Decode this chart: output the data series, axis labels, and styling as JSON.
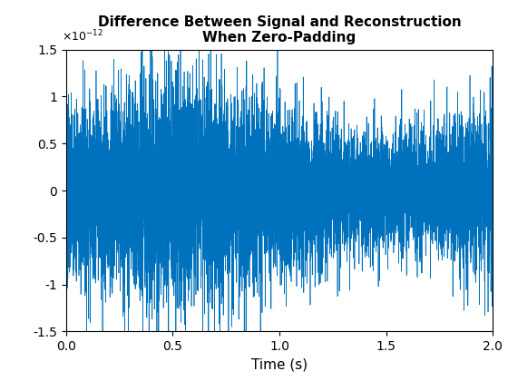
{
  "title": "Difference Between Signal and Reconstruction\nWhen Zero-Padding",
  "xlabel": "Time (s)",
  "ylabel_exp": -12,
  "ylim": [
    -1.5e-12,
    1.5e-12
  ],
  "xlim": [
    0,
    2
  ],
  "line_color": "#0072BD",
  "n_points": 8000,
  "duration": 2.0,
  "seed": 7,
  "base_amplitude": 4.5e-13,
  "background_color": "#ffffff",
  "title_fontsize": 11,
  "xlabel_fontsize": 11,
  "tick_fontsize": 10
}
